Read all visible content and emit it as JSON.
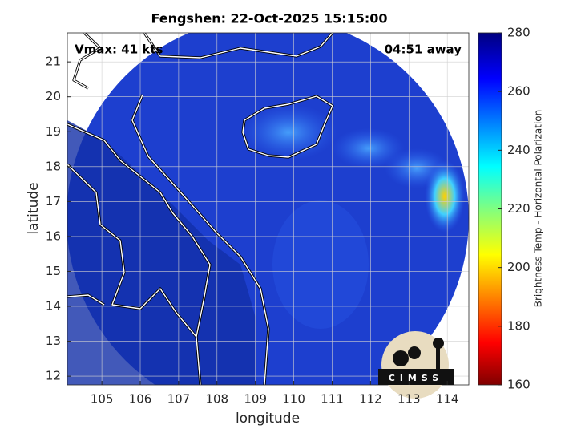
{
  "chart_data": {
    "type": "map",
    "title": "Fengshen: 22-Oct-2025 15:15:00",
    "x_label": "longitude",
    "y_label": "latitude",
    "xlim": [
      104.1,
      114.56
    ],
    "ylim": [
      11.75,
      21.83
    ],
    "xticks": [
      105,
      106,
      107,
      108,
      109,
      110,
      111,
      112,
      113,
      114
    ],
    "yticks": [
      12,
      13,
      14,
      15,
      16,
      17,
      18,
      19,
      20,
      21
    ],
    "grid": true,
    "annotations": [
      "Vmax: 41 kts",
      "04:51 away"
    ],
    "colorbar": {
      "label": "Brightness Temp - Horizontal Polarization",
      "lim": [
        160,
        280
      ],
      "ticks": [
        160,
        180,
        200,
        220,
        240,
        260,
        280
      ]
    },
    "logo": "CIMSS"
  }
}
